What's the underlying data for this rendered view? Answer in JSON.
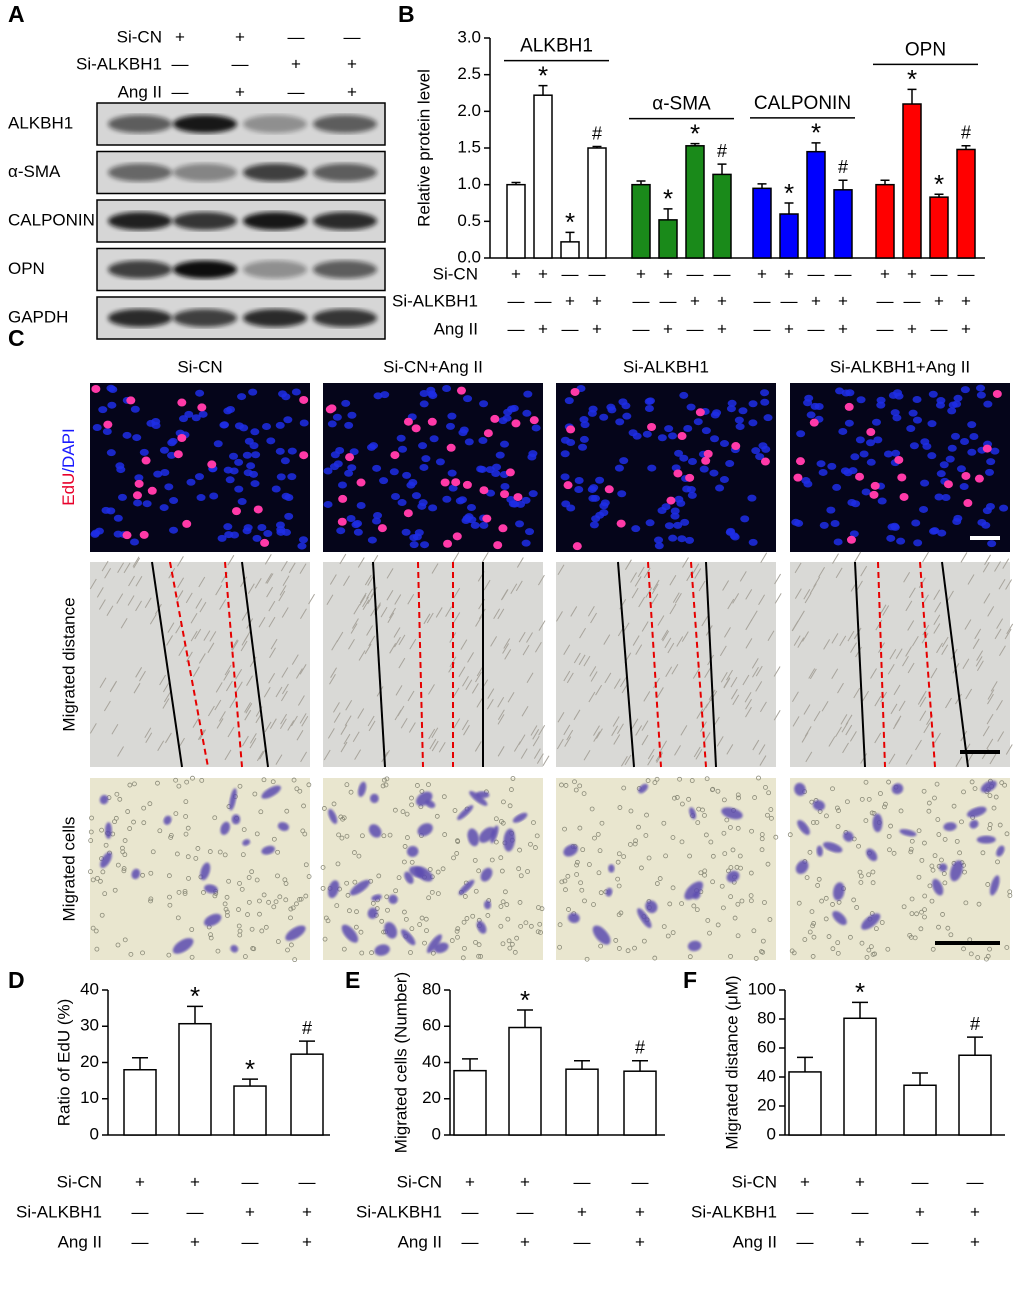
{
  "panel_labels": [
    "A",
    "B",
    "C",
    "D",
    "E",
    "F"
  ],
  "blot": {
    "conditions": [
      {
        "label": "Si-CN",
        "signs": [
          "+",
          "+",
          "—",
          "—"
        ]
      },
      {
        "label": "Si-ALKBH1",
        "signs": [
          "—",
          "—",
          "+",
          "+"
        ]
      },
      {
        "label": "Ang II",
        "signs": [
          "—",
          "+",
          "—",
          "+"
        ]
      }
    ],
    "bands": [
      "ALKBH1",
      "α-SMA",
      "CALPONIN",
      "OPN",
      "GAPDH"
    ]
  },
  "images": {
    "columns": [
      "Si-CN",
      "Si-CN+Ang II",
      "Si-ALKBH1",
      "Si-ALKBH1+Ang II"
    ],
    "edu_row": [
      "EdU",
      "/DAPI"
    ],
    "rows": [
      "Migrated distance",
      "Migrated cells"
    ]
  },
  "chart_data": [
    {
      "type": "grouped-bar",
      "y_label": "Relative protein level",
      "ylim": [
        0,
        3
      ],
      "yticks": [
        {
          "value": 0,
          "label": "0.0"
        },
        0.5,
        {
          "value": 1,
          "label": "1.0"
        },
        1.5,
        {
          "value": 2,
          "label": "2.0"
        },
        2.5,
        {
          "value": 3,
          "label": "3.0"
        }
      ],
      "conditions": [
        {
          "label": "Si-CN",
          "signs": [
            "+",
            "+",
            "—",
            "—"
          ]
        },
        {
          "label": "Si-ALKBH1",
          "signs": [
            "—",
            "—",
            "+",
            "+"
          ]
        },
        {
          "label": "Ang II",
          "signs": [
            "—",
            "+",
            "—",
            "+"
          ]
        }
      ],
      "series": [
        {
          "name": "ALKBH1",
          "color": "#ffffff",
          "values": [
            1.0,
            2.22,
            0.22,
            1.5
          ],
          "errors": [
            0.03,
            0.13,
            0.13,
            0.02
          ],
          "annotations": [
            null,
            "*",
            "*",
            "#"
          ]
        },
        {
          "name": "α-SMA",
          "color": "#1a8a1a",
          "values": [
            1.0,
            0.52,
            1.53,
            1.14
          ],
          "errors": [
            0.05,
            0.15,
            0.03,
            0.14
          ],
          "annotations": [
            null,
            "*",
            "*",
            "#"
          ]
        },
        {
          "name": "CALPONIN",
          "color": "#0000ff",
          "values": [
            0.95,
            0.6,
            1.45,
            0.93
          ],
          "errors": [
            0.06,
            0.15,
            0.12,
            0.13
          ],
          "annotations": [
            null,
            "*",
            "*",
            "#"
          ]
        },
        {
          "name": "OPN",
          "color": "#ff0000",
          "values": [
            1.0,
            2.1,
            0.83,
            1.48
          ],
          "errors": [
            0.06,
            0.2,
            0.04,
            0.05
          ],
          "annotations": [
            null,
            "*",
            "*",
            "#"
          ]
        }
      ]
    },
    {
      "type": "bar",
      "y_label": "Ratio of EdU (%)",
      "color": "#ffffff",
      "ylim": [
        0,
        40
      ],
      "yticks": [
        0,
        10,
        20,
        30,
        40
      ],
      "conditions": [
        {
          "label": "Si-CN",
          "signs": [
            "+",
            "+",
            "—",
            "—"
          ]
        },
        {
          "label": "Si-ALKBH1",
          "signs": [
            "—",
            "—",
            "+",
            "+"
          ]
        },
        {
          "label": "Ang II",
          "signs": [
            "—",
            "+",
            "—",
            "+"
          ]
        }
      ],
      "values": [
        18,
        30.7,
        13.5,
        22.3
      ],
      "errors": [
        3.3,
        4.8,
        1.9,
        3.6
      ],
      "annotations": [
        null,
        "*",
        "*",
        "#"
      ]
    },
    {
      "type": "bar",
      "y_label": "Migrated cells (Number)",
      "color": "#ffffff",
      "ylim": [
        0,
        80
      ],
      "yticks": [
        0,
        20,
        40,
        60,
        80
      ],
      "conditions": [
        {
          "label": "Si-CN",
          "signs": [
            "+",
            "+",
            "—",
            "—"
          ]
        },
        {
          "label": "Si-ALKBH1",
          "signs": [
            "—",
            "—",
            "+",
            "+"
          ]
        },
        {
          "label": "Ang II",
          "signs": [
            "—",
            "+",
            "—",
            "+"
          ]
        }
      ],
      "values": [
        35.5,
        59.3,
        36.3,
        35.2
      ],
      "errors": [
        6.5,
        9.7,
        4.7,
        5.8
      ],
      "annotations": [
        null,
        "*",
        null,
        "#"
      ]
    },
    {
      "type": "bar",
      "y_label": "Migrated distance (μM)",
      "color": "#ffffff",
      "ylim": [
        0,
        100
      ],
      "yticks": [
        0,
        20,
        40,
        60,
        80,
        100
      ],
      "conditions": [
        {
          "label": "Si-CN",
          "signs": [
            "+",
            "+",
            "—",
            "—"
          ]
        },
        {
          "label": "Si-ALKBH1",
          "signs": [
            "—",
            "—",
            "+",
            "+"
          ]
        },
        {
          "label": "Ang II",
          "signs": [
            "—",
            "+",
            "—",
            "+"
          ]
        }
      ],
      "values": [
        43.5,
        80.5,
        34.3,
        55
      ],
      "errors": [
        10,
        11,
        8.5,
        12.5
      ],
      "annotations": [
        null,
        "*",
        null,
        "#"
      ]
    }
  ]
}
